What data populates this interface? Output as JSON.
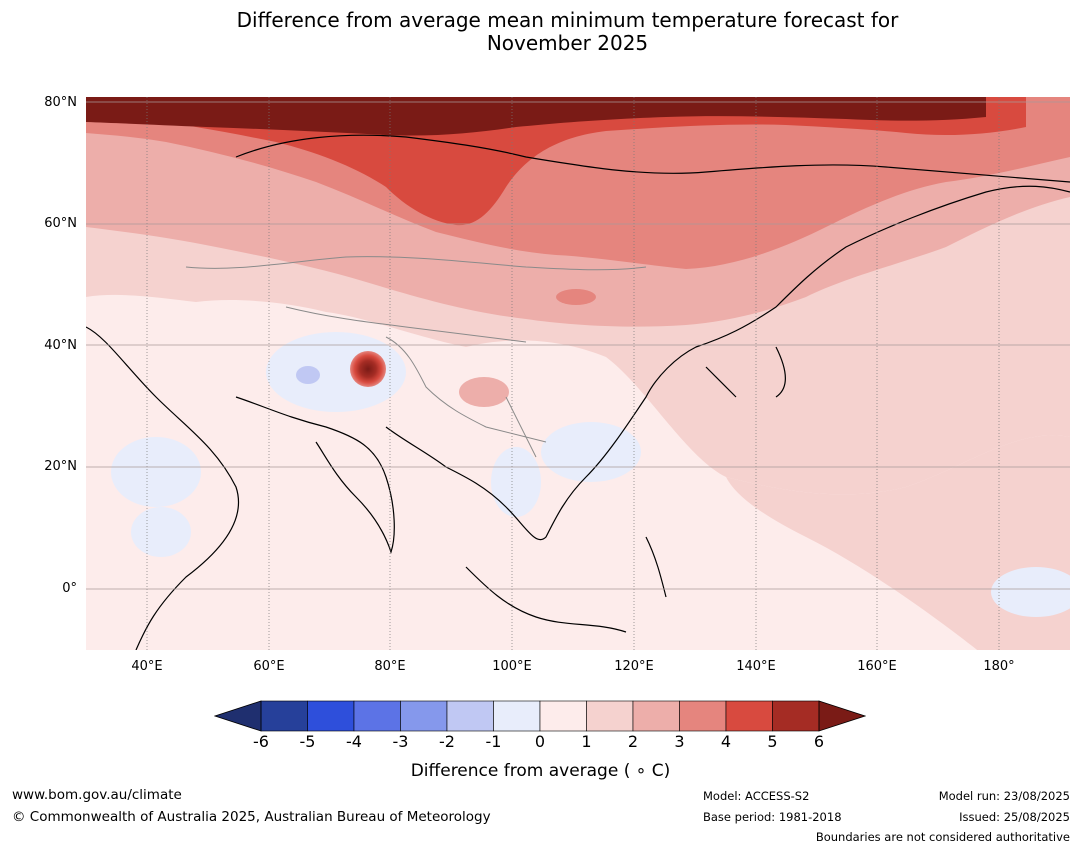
{
  "title_line1": "Difference from average mean minimum temperature forecast for",
  "title_line2": "November 2025",
  "map": {
    "lat_labels": [
      "80°N",
      "60°N",
      "40°N",
      "20°N",
      "0°"
    ],
    "lon_labels": [
      "40°E",
      "60°E",
      "80°E",
      "100°E",
      "120°E",
      "140°E",
      "160°E",
      "180°"
    ],
    "lon_range": [
      30,
      191.5
    ],
    "lat_range": [
      -10,
      80
    ]
  },
  "colorbar": {
    "ticks": [
      "-6",
      "-5",
      "-4",
      "-3",
      "-2",
      "-1",
      "0",
      "1",
      "2",
      "3",
      "4",
      "5",
      "6"
    ],
    "colors": [
      "#26409a",
      "#2e4fdb",
      "#5c73e6",
      "#8598ec",
      "#c0c8f3",
      "#e8edfb",
      "#fdeceb",
      "#f5d2cf",
      "#edaeaa",
      "#e5857e",
      "#d84a3f",
      "#a52c24"
    ],
    "under_color": "#1f2f6f",
    "over_color": "#7a1b16",
    "label": "Difference from average ( ∘ C)"
  },
  "footer": {
    "website": "www.bom.gov.au/climate",
    "copyright": "© Commonwealth of Australia 2025, Australian Bureau of Meteorology",
    "model": "Model: ACCESS-S2",
    "base_period": "Base period: 1981-2018",
    "model_run": "Model run: 23/08/2025",
    "issued": "Issued: 25/08/2025",
    "disclaimer": "Boundaries are not considered authoritative"
  }
}
